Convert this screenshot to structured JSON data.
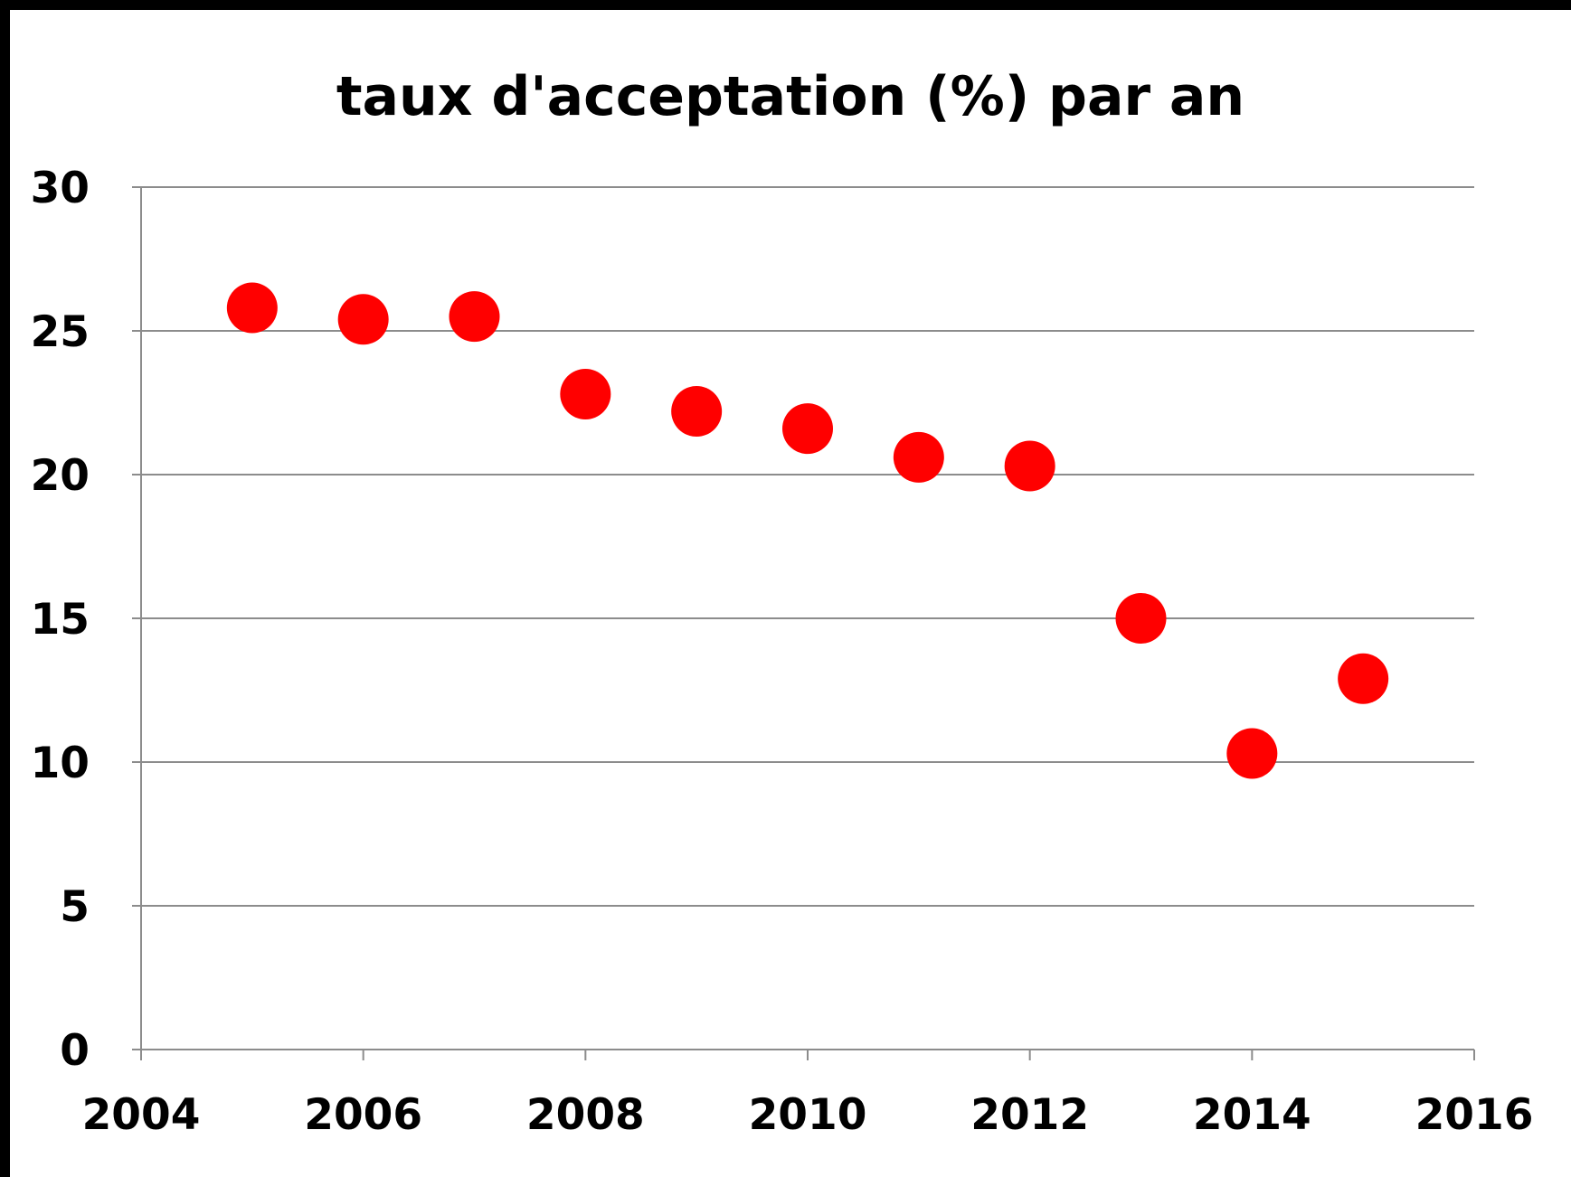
{
  "chart_data": {
    "type": "scatter",
    "title": "taux d'acceptation (%) par an",
    "xlabel": "",
    "ylabel": "",
    "x": [
      2005,
      2006,
      2007,
      2008,
      2009,
      2010,
      2011,
      2012,
      2013,
      2014,
      2015
    ],
    "y": [
      25.8,
      25.4,
      25.5,
      22.8,
      22.2,
      21.6,
      20.6,
      20.3,
      15.0,
      10.3,
      12.9
    ],
    "xlim": [
      2004,
      2016
    ],
    "ylim": [
      0,
      30
    ],
    "x_ticks": [
      "2004",
      "2006",
      "2008",
      "2010",
      "2012",
      "2014",
      "2016"
    ],
    "y_ticks": [
      "0",
      "5",
      "10",
      "15",
      "20",
      "25",
      "30"
    ],
    "grid": "horizontal",
    "legend": "none",
    "marker_color": "#ff0000"
  }
}
